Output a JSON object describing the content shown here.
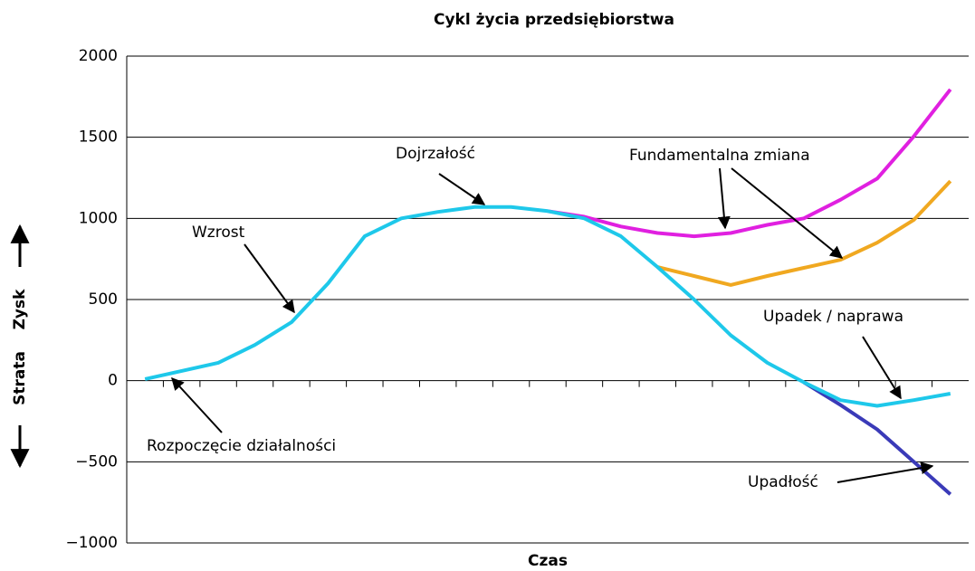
{
  "chart_data": {
    "type": "line",
    "title": "Cykl życia przedsiębiorstwa",
    "xlabel": "Czas",
    "ylabel_loss": "Strata",
    "ylabel_profit": "Zysk",
    "categories": [
      null,
      null,
      null,
      null,
      null,
      null,
      null,
      null,
      null,
      null,
      null,
      null,
      null,
      null,
      null,
      null,
      null,
      null,
      null,
      null,
      null,
      null,
      null
    ],
    "series": [
      {
        "color": "#e020e0",
        "values": [
          null,
          null,
          null,
          null,
          null,
          null,
          null,
          null,
          null,
          null,
          null,
          1045,
          1010,
          950,
          910,
          890,
          910,
          960,
          1000,
          1115,
          1245,
          1505,
          1795
        ]
      },
      {
        "color": "#f0a820",
        "values": [
          null,
          null,
          null,
          null,
          null,
          null,
          null,
          null,
          null,
          null,
          null,
          null,
          null,
          null,
          700,
          645,
          590,
          645,
          695,
          745,
          850,
          990,
          1230
        ]
      },
      {
        "color": "#3a3ab8",
        "values": [
          null,
          null,
          null,
          null,
          null,
          null,
          null,
          null,
          null,
          null,
          null,
          null,
          null,
          null,
          null,
          null,
          null,
          null,
          -10,
          -150,
          -300,
          -500,
          -700
        ]
      },
      {
        "color": "#1ec8ea",
        "values": [
          10,
          60,
          110,
          220,
          360,
          600,
          890,
          1000,
          1040,
          1070,
          1070,
          1045,
          1000,
          890,
          700,
          500,
          280,
          110,
          -10,
          -120,
          -155,
          -120,
          -80
        ]
      }
    ],
    "ylim": [
      -1000,
      2000
    ],
    "yticks": [
      {
        "value": -1000,
        "label": "−1000"
      },
      {
        "value": -500,
        "label": "−500"
      },
      0,
      500,
      1000,
      1500,
      2000
    ],
    "grid": true,
    "annotations": [
      "Wzrost",
      "Dojrzałość",
      "Fundamentalna zmiana",
      "Upadek / naprawa",
      "Rozpoczęcie działalności",
      "Upadłość"
    ]
  }
}
